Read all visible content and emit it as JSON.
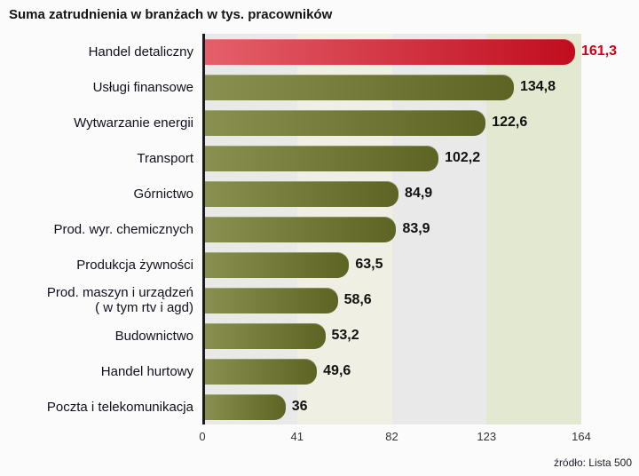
{
  "title": "Suma zatrudnienia w branżach w tys. pracowników",
  "source": "źródło: Lista 500",
  "chart_data": {
    "type": "bar",
    "orientation": "horizontal",
    "title": "Suma zatrudnienia w branżach w tys. pracowników",
    "categories": [
      "Handel detaliczny",
      "Usługi finansowe",
      "Wytwarzanie energii",
      "Transport",
      "Górnictwo",
      "Prod. wyr. chemicznych",
      "Produkcja żywności",
      "Prod. maszyn i urządzeń\n( w tym rtv i agd)",
      "Budownictwo",
      "Handel hurtowy",
      "Poczta i telekomunikacja"
    ],
    "values": [
      161.3,
      134.8,
      122.6,
      102.2,
      84.9,
      83.9,
      63.5,
      58.6,
      53.2,
      49.6,
      36
    ],
    "value_labels": [
      "161,3",
      "134,8",
      "122,6",
      "102,2",
      "84,9",
      "83,9",
      "63,5",
      "58,6",
      "53,2",
      "49,6",
      "36"
    ],
    "xlim": [
      0,
      164
    ],
    "x_ticks": [
      "0",
      "41",
      "82",
      "123",
      "164"
    ],
    "highlight_index": 0,
    "legend": "none",
    "grid": "background-bands",
    "colors": {
      "bar_start": "#8a9150",
      "bar_end": "#5d6423",
      "highlight_bar_start": "#e5606b",
      "highlight_bar_end": "#c00d1e",
      "value": "#111111",
      "highlight_value": "#d10019",
      "band_colors": [
        "#e9e9e9",
        "#f0efe4",
        "#e9e9e9",
        "#e3e8d0"
      ]
    }
  }
}
